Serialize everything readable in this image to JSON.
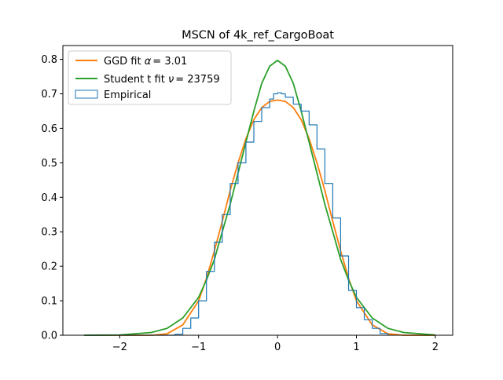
{
  "chart_data": {
    "type": "line",
    "title": "MSCN of 4k_ref_CargoBoat",
    "xlabel": "",
    "ylabel": "",
    "xlim": [
      -2.72,
      2.22
    ],
    "ylim": [
      0,
      0.84
    ],
    "x_ticks": [
      -2,
      -1,
      0,
      1,
      2
    ],
    "y_ticks": [
      0.0,
      0.1,
      0.2,
      0.3,
      0.4,
      0.5,
      0.6,
      0.7,
      0.8
    ],
    "x_tick_labels": [
      "−2",
      "−1",
      "0",
      "1",
      "2"
    ],
    "y_tick_labels": [
      "0.0",
      "0.1",
      "0.2",
      "0.3",
      "0.4",
      "0.5",
      "0.6",
      "0.7",
      "0.8"
    ],
    "grid": false,
    "legend_position": "top-left",
    "series": [
      {
        "name": "GGD fit α = 3.01",
        "legend_prefix": "GGD fit ",
        "legend_param_symbol": "α",
        "legend_param_value": "= 3.01",
        "kind": "line",
        "color": "#ff7f0e",
        "x": [
          -2.45,
          -2.0,
          -1.6,
          -1.4,
          -1.2,
          -1.0,
          -0.9,
          -0.8,
          -0.7,
          -0.6,
          -0.5,
          -0.4,
          -0.3,
          -0.2,
          -0.1,
          0.0,
          0.1,
          0.2,
          0.3,
          0.4,
          0.5,
          0.6,
          0.7,
          0.8,
          0.9,
          1.0,
          1.2,
          1.4,
          1.6,
          2.0
        ],
        "y": [
          0.0,
          0.0,
          0.0,
          0.004,
          0.03,
          0.1,
          0.165,
          0.245,
          0.33,
          0.42,
          0.5,
          0.57,
          0.625,
          0.66,
          0.678,
          0.682,
          0.678,
          0.66,
          0.625,
          0.57,
          0.5,
          0.42,
          0.33,
          0.245,
          0.165,
          0.1,
          0.03,
          0.004,
          0.0,
          0.0
        ]
      },
      {
        "name": "Student t fit ν = 23759",
        "legend_prefix": "Student t fit ",
        "legend_param_symbol": "ν",
        "legend_param_value": "= 23759",
        "kind": "line",
        "color": "#2ca02c",
        "x": [
          -2.45,
          -2.0,
          -1.6,
          -1.4,
          -1.2,
          -1.0,
          -0.9,
          -0.8,
          -0.7,
          -0.6,
          -0.5,
          -0.4,
          -0.3,
          -0.2,
          -0.1,
          0.0,
          0.1,
          0.2,
          0.3,
          0.4,
          0.5,
          0.6,
          0.7,
          0.8,
          0.9,
          1.0,
          1.2,
          1.4,
          1.6,
          2.0
        ],
        "y": [
          0.0,
          0.001,
          0.008,
          0.02,
          0.05,
          0.11,
          0.16,
          0.22,
          0.3,
          0.38,
          0.47,
          0.56,
          0.65,
          0.73,
          0.78,
          0.797,
          0.78,
          0.73,
          0.65,
          0.56,
          0.47,
          0.38,
          0.3,
          0.22,
          0.16,
          0.11,
          0.05,
          0.02,
          0.008,
          0.001
        ]
      },
      {
        "name": "Empirical",
        "kind": "step",
        "color": "#1f77b4",
        "x": [
          -2.45,
          -1.3,
          -1.2,
          -1.1,
          -1.0,
          -0.9,
          -0.8,
          -0.7,
          -0.6,
          -0.5,
          -0.4,
          -0.3,
          -0.2,
          -0.1,
          -0.05,
          0.0,
          0.05,
          0.1,
          0.2,
          0.3,
          0.4,
          0.5,
          0.6,
          0.7,
          0.8,
          0.9,
          1.0,
          1.1,
          1.2,
          1.3,
          1.4
        ],
        "y": [
          0.0,
          0.003,
          0.02,
          0.05,
          0.1,
          0.185,
          0.27,
          0.35,
          0.44,
          0.5,
          0.56,
          0.62,
          0.66,
          0.685,
          0.7,
          0.703,
          0.7,
          0.69,
          0.67,
          0.65,
          0.61,
          0.54,
          0.44,
          0.34,
          0.23,
          0.13,
          0.08,
          0.045,
          0.02,
          0.005,
          0.0
        ]
      }
    ]
  }
}
